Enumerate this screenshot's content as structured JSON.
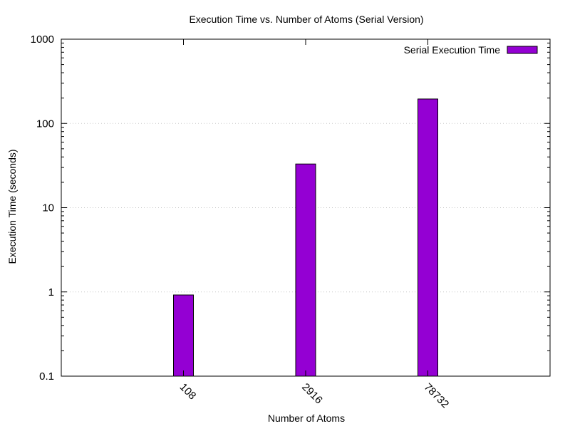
{
  "chart_data": {
    "type": "bar",
    "title": "Execution Time vs. Number of Atoms (Serial Version)",
    "xlabel": "Number of Atoms",
    "ylabel": "Execution Time (seconds)",
    "categories": [
      "108",
      "2916",
      "78732"
    ],
    "series": [
      {
        "name": "Serial Execution Time",
        "values": [
          0.92,
          33,
          195
        ]
      }
    ],
    "y_scale": "log",
    "ylim": [
      0.1,
      1000
    ],
    "y_ticks": [
      0.1,
      1,
      10,
      100,
      1000
    ],
    "y_tick_labels": [
      "0.1",
      "1",
      "10",
      "100",
      "1000"
    ],
    "grid": "horizontal dotted",
    "legend_position": "top-right",
    "colors": {
      "bar": "#9400d3",
      "grid": "#c8c8c8"
    }
  }
}
